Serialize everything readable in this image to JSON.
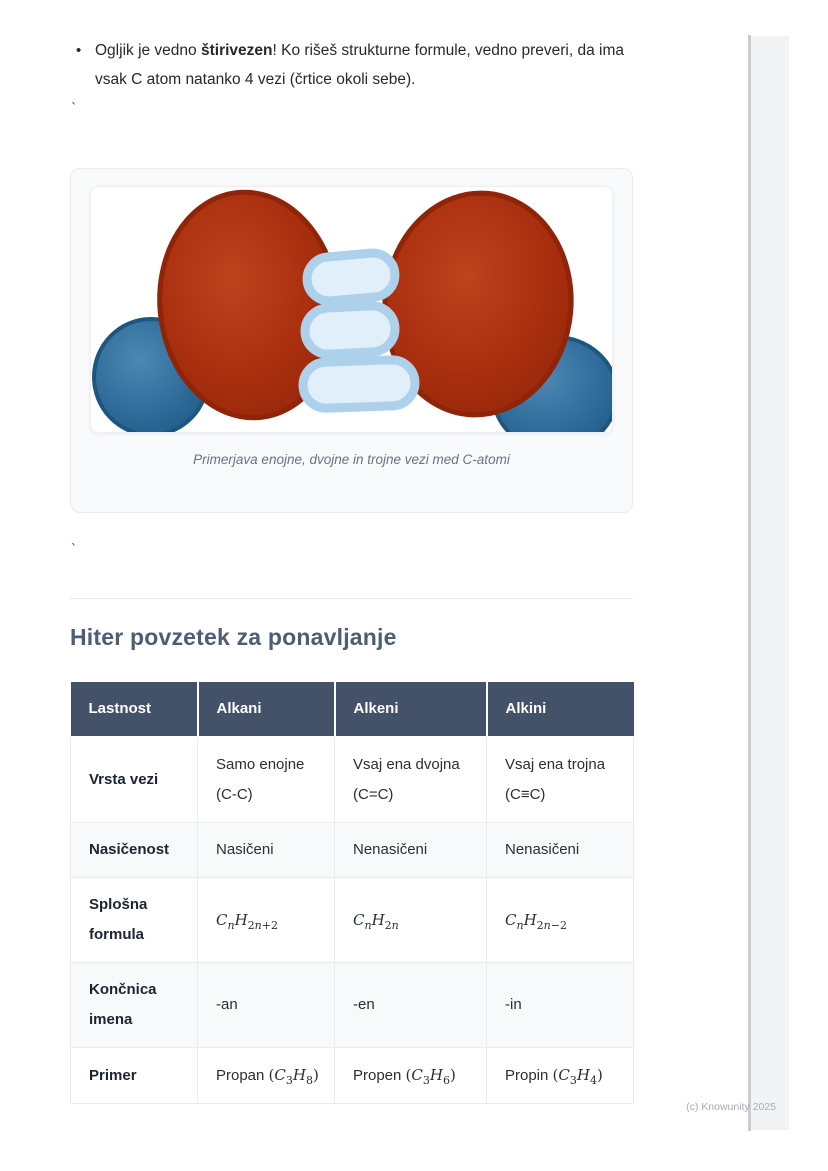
{
  "bullet": {
    "prefix": "Ogljik je vedno ",
    "bold": "štirivezen",
    "suffix": "! Ko rišeš strukturne formule, vedno preveri, da ima vsak C atom natanko 4 vezi (črtice okoli sebe)."
  },
  "ticks": {
    "top": "`",
    "bottom": "`"
  },
  "figure": {
    "caption": "Primerjava enojne, dvojne in trojne vezi med C-atomi",
    "colors": {
      "red_atom": "#ab300f",
      "red_atom_rim": "#8f2408",
      "blue_atom": "#34719f",
      "blue_atom_rim": "#1d567f",
      "bond_fill": "#e0effa",
      "bond_border": "#add1eb"
    }
  },
  "heading": {
    "text": "Hiter povzetek za ponavljanje",
    "color": "#4d5d74"
  },
  "table": {
    "header_bg": "#435268",
    "headers": [
      "Lastnost",
      "Alkani",
      "Alkeni",
      "Alkini"
    ],
    "rows": [
      {
        "label": "Vrsta vezi",
        "cells": [
          {
            "text": "Samo enojne (C-C)"
          },
          {
            "text": "Vsaj ena dvojna (C=C)"
          },
          {
            "text": "Vsaj ena trojna (C≡C)"
          }
        ]
      },
      {
        "label": "Nasičenost",
        "cells": [
          {
            "text": "Nasičeni"
          },
          {
            "text": "Nenasičeni"
          },
          {
            "text": "Nenasičeni"
          }
        ]
      },
      {
        "label": "Splošna formula",
        "cells": [
          {
            "formula": [
              [
                "C",
                "n"
              ],
              [
                "H",
                "2n+2"
              ]
            ]
          },
          {
            "formula": [
              [
                "C",
                "n"
              ],
              [
                "H",
                "2n"
              ]
            ]
          },
          {
            "formula": [
              [
                "C",
                "n"
              ],
              [
                "H",
                "2n−2"
              ]
            ]
          }
        ]
      },
      {
        "label": "Končnica imena",
        "cells": [
          {
            "text": "-an"
          },
          {
            "text": "-en"
          },
          {
            "text": "-in"
          }
        ]
      },
      {
        "label": "Primer",
        "cells": [
          {
            "text": "Propan",
            "formula": [
              [
                "C",
                "3"
              ],
              [
                "H",
                "8"
              ]
            ],
            "parens": true
          },
          {
            "text": "Propen",
            "formula": [
              [
                "C",
                "3"
              ],
              [
                "H",
                "6"
              ]
            ],
            "parens": true
          },
          {
            "text": "Propin",
            "formula": [
              [
                "C",
                "3"
              ],
              [
                "H",
                "4"
              ]
            ],
            "parens": true
          }
        ]
      }
    ]
  },
  "footer": {
    "text": "(c) Knowunity 2025"
  }
}
